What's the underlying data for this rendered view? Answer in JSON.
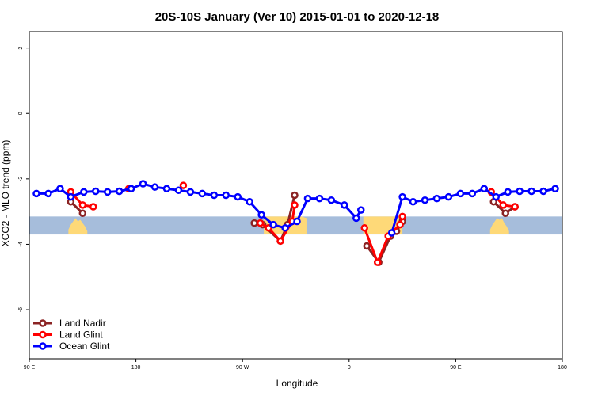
{
  "chart_data": {
    "type": "line",
    "title": "20S-10S January (Ver 10)   2015-01-01 to 2020-12-18",
    "xlabel": "Longitude",
    "ylabel": "XCO2 - MLO trend (ppm)",
    "xlim": [
      90,
      540
    ],
    "ylim": [
      -7.5,
      2.5
    ],
    "x_ticks": [
      {
        "value": 90,
        "label": "90 E"
      },
      {
        "value": 180,
        "label": "180"
      },
      {
        "value": 270,
        "label": "90 W"
      },
      {
        "value": 360,
        "label": "0"
      },
      {
        "value": 450,
        "label": "90 E"
      },
      {
        "value": 540,
        "label": "180"
      }
    ],
    "y_ticks": [
      {
        "value": 2,
        "label": "2"
      },
      {
        "value": 0,
        "label": "0"
      },
      {
        "value": -2,
        "label": "-2"
      },
      {
        "value": -4,
        "label": "-4"
      },
      {
        "value": -6,
        "label": "-6"
      }
    ],
    "legend_position": "bottom-left",
    "ocean_band": {
      "ymin": -3.7,
      "ymax": -3.15,
      "color": "#a6bddb"
    },
    "land_color": "#fed978",
    "land_regions": [
      {
        "x": [
          123,
          125,
          127,
          129,
          131,
          133,
          135,
          137,
          139
        ],
        "top": [
          -3.55,
          -3.4,
          -3.3,
          -3.2,
          -3.3,
          -3.25,
          -3.35,
          -3.45,
          -3.6
        ]
      },
      {
        "x": [
          288,
          296,
          304,
          312,
          320,
          324
        ],
        "top": [
          -3.15,
          -3.15,
          -3.15,
          -3.15,
          -3.15,
          -3.2
        ]
      },
      {
        "x": [
          372,
          380,
          390,
          400,
          405
        ],
        "top": [
          -3.15,
          -3.15,
          -3.15,
          -3.15,
          -3.15
        ]
      },
      {
        "x": [
          479,
          481,
          483,
          485,
          487,
          489,
          491,
          493,
          495
        ],
        "top": [
          -3.55,
          -3.4,
          -3.3,
          -3.2,
          -3.25,
          -3.2,
          -3.35,
          -3.45,
          -3.6
        ]
      }
    ],
    "series": [
      {
        "name": "Land Nadir",
        "color": "#8b2323",
        "segments": [
          {
            "x": [
              125,
              135
            ],
            "y": [
              -2.7,
              -3.05
            ]
          },
          {
            "x": [
              280,
              287,
              302,
              308,
              314
            ],
            "y": [
              -3.35,
              -3.4,
              -3.9,
              -3.4,
              -2.5
            ]
          },
          {
            "x": [
              375,
              385,
              395,
              400,
              405
            ],
            "y": [
              -4.05,
              -4.55,
              -3.75,
              -3.6,
              -3.3
            ]
          },
          {
            "x": [
              482,
              492,
              500
            ],
            "y": [
              -2.7,
              -3.05,
              -2.85
            ]
          }
        ]
      },
      {
        "name": "Land Glint",
        "color": "#ff0000",
        "segments": [
          {
            "x": [
              125,
              135,
              144
            ],
            "y": [
              -2.4,
              -2.8,
              -2.85
            ]
          },
          {
            "x": [
              174
            ],
            "y": [
              -2.3
            ]
          },
          {
            "x": [
              220
            ],
            "y": [
              -2.2
            ]
          },
          {
            "x": [
              285,
              292,
              302,
              312,
              314
            ],
            "y": [
              -3.35,
              -3.5,
              -3.9,
              -3.3,
              -2.8
            ]
          },
          {
            "x": [
              373,
              384,
              393,
              403,
              405
            ],
            "y": [
              -3.5,
              -4.55,
              -3.75,
              -3.4,
              -3.15
            ]
          },
          {
            "x": [
              480,
              490,
              500
            ],
            "y": [
              -2.4,
              -2.8,
              -2.85
            ]
          }
        ]
      },
      {
        "name": "Ocean Glint",
        "color": "#0000ff",
        "segments": [
          {
            "x": [
              96,
              106,
              116,
              125,
              136,
              146,
              156,
              166,
              176,
              186,
              196,
              206,
              216,
              226,
              236,
              246,
              256,
              266,
              276,
              286,
              296,
              306,
              316,
              325,
              335,
              345,
              356,
              366,
              370
            ],
            "y": [
              -2.45,
              -2.45,
              -2.3,
              -2.55,
              -2.4,
              -2.38,
              -2.4,
              -2.38,
              -2.3,
              -2.15,
              -2.25,
              -2.3,
              -2.35,
              -2.4,
              -2.45,
              -2.5,
              -2.5,
              -2.55,
              -2.7,
              -3.1,
              -3.4,
              -3.5,
              -3.3,
              -2.6,
              -2.6,
              -2.65,
              -2.8,
              -3.2,
              -2.95
            ]
          },
          {
            "x": [
              396,
              405,
              414,
              424,
              434,
              444,
              454,
              464,
              474,
              484,
              494,
              504,
              514,
              524,
              534
            ],
            "y": [
              -3.65,
              -2.55,
              -2.7,
              -2.65,
              -2.6,
              -2.55,
              -2.45,
              -2.45,
              -2.3,
              -2.55,
              -2.4,
              -2.38,
              -2.38,
              -2.38,
              -2.3
            ]
          }
        ]
      }
    ]
  }
}
